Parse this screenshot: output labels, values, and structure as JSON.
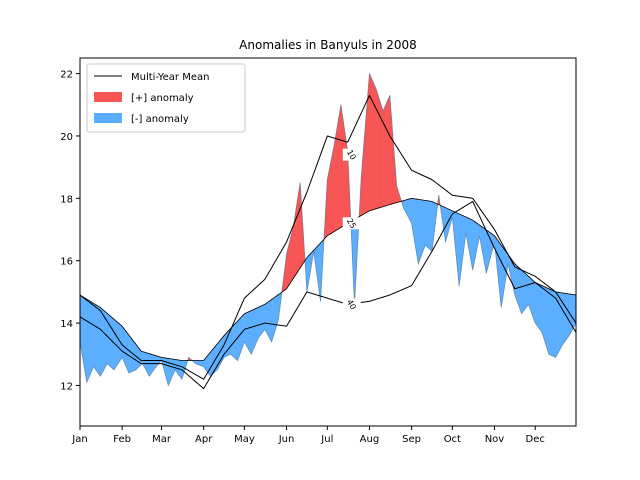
{
  "chart_data": {
    "type": "area",
    "title": "Anomalies in Banyuls in 2008",
    "xlabel": "",
    "ylabel": "",
    "xlim": [
      0,
      365
    ],
    "ylim": [
      10.7,
      22.5
    ],
    "x_ticks": [
      {
        "day": 0,
        "label": "Jan"
      },
      {
        "day": 31,
        "label": "Feb"
      },
      {
        "day": 60,
        "label": "Mar"
      },
      {
        "day": 91,
        "label": "Apr"
      },
      {
        "day": 121,
        "label": "May"
      },
      {
        "day": 152,
        "label": "Jun"
      },
      {
        "day": 182,
        "label": "Jul"
      },
      {
        "day": 213,
        "label": "Aug"
      },
      {
        "day": 244,
        "label": "Sep"
      },
      {
        "day": 274,
        "label": "Oct"
      },
      {
        "day": 305,
        "label": "Nov"
      },
      {
        "day": 335,
        "label": "Dec"
      }
    ],
    "y_ticks": [
      12,
      14,
      16,
      18,
      20,
      22
    ],
    "legend": {
      "placement": "top-left",
      "entries": [
        {
          "label": "Multi-Year Mean",
          "kind": "line",
          "color": "#000000"
        },
        {
          "label": "[+] anomaly",
          "kind": "patch",
          "color": "#f75454"
        },
        {
          "label": "[-] anomaly",
          "kind": "patch",
          "color": "#5aaeff"
        }
      ]
    },
    "colors": {
      "positive": "#f75454",
      "negative": "#5aaeff",
      "mean": "#000000"
    },
    "percentile_labels": [
      {
        "label": "10",
        "day": 200,
        "value": 19.4
      },
      {
        "label": "25",
        "day": 200,
        "value": 17.2
      },
      {
        "label": "40",
        "day": 200,
        "value": 14.6
      }
    ],
    "mean": {
      "day": [
        0,
        15,
        31,
        45,
        60,
        75,
        91,
        106,
        121,
        136,
        152,
        167,
        182,
        197,
        213,
        228,
        244,
        259,
        274,
        289,
        305,
        320,
        335,
        350,
        365
      ],
      "value": [
        14.9,
        14.5,
        13.9,
        13.1,
        12.9,
        12.8,
        12.8,
        13.6,
        14.3,
        14.6,
        15.1,
        16.1,
        16.8,
        17.2,
        17.6,
        17.8,
        18.0,
        17.9,
        17.6,
        17.3,
        16.8,
        15.9,
        15.3,
        15.0,
        14.9
      ]
    },
    "p10": {
      "day": [
        0,
        15,
        31,
        45,
        60,
        75,
        91,
        106,
        121,
        136,
        152,
        167,
        182,
        197,
        213,
        228,
        244,
        259,
        274,
        289,
        305,
        320,
        335,
        350,
        365
      ],
      "value": [
        14.9,
        14.4,
        13.3,
        12.8,
        12.8,
        12.6,
        12.2,
        13.3,
        14.8,
        15.4,
        16.6,
        18.2,
        20.0,
        19.8,
        21.3,
        20.0,
        18.9,
        18.6,
        18.1,
        18.0,
        17.0,
        15.8,
        15.5,
        15.0,
        14.0
      ]
    },
    "p40": {
      "day": [
        0,
        15,
        31,
        45,
        60,
        75,
        91,
        106,
        121,
        136,
        152,
        167,
        182,
        197,
        213,
        228,
        244,
        259,
        274,
        289,
        305,
        320,
        335,
        350,
        365
      ],
      "value": [
        14.2,
        13.8,
        13.1,
        12.7,
        12.7,
        12.5,
        11.9,
        13.0,
        13.8,
        14.0,
        13.9,
        15.0,
        14.8,
        14.6,
        14.7,
        14.9,
        15.2,
        16.3,
        17.5,
        17.9,
        16.4,
        15.1,
        15.3,
        14.8,
        13.7
      ]
    },
    "observed": {
      "day": [
        0,
        5,
        10,
        15,
        20,
        25,
        31,
        36,
        41,
        46,
        51,
        56,
        60,
        65,
        70,
        75,
        80,
        85,
        91,
        96,
        101,
        106,
        111,
        116,
        121,
        126,
        131,
        136,
        141,
        146,
        152,
        157,
        162,
        167,
        172,
        177,
        182,
        187,
        192,
        197,
        202,
        207,
        213,
        218,
        223,
        228,
        233,
        238,
        244,
        249,
        254,
        259,
        264,
        269,
        274,
        279,
        284,
        289,
        294,
        299,
        305,
        310,
        315,
        320,
        325,
        330,
        335,
        340,
        345,
        350,
        355,
        360,
        365
      ],
      "value": [
        13.4,
        12.1,
        12.6,
        12.3,
        12.7,
        12.5,
        12.9,
        12.4,
        12.5,
        12.7,
        12.3,
        12.6,
        12.8,
        12.0,
        12.5,
        12.2,
        12.9,
        12.7,
        12.6,
        12.3,
        12.5,
        12.9,
        13.0,
        12.8,
        13.4,
        13.0,
        13.5,
        13.8,
        13.4,
        14.1,
        16.2,
        17.1,
        18.5,
        15.0,
        16.3,
        14.7,
        18.6,
        19.7,
        21.0,
        19.5,
        14.6,
        18.7,
        22.0,
        21.5,
        20.8,
        21.3,
        18.4,
        17.7,
        17.2,
        15.9,
        16.5,
        16.3,
        18.1,
        16.6,
        17.4,
        15.2,
        16.9,
        15.7,
        16.8,
        15.6,
        16.6,
        14.5,
        15.9,
        14.9,
        14.3,
        14.6,
        14.0,
        13.7,
        13.0,
        12.9,
        13.3,
        13.6,
        14.0
      ]
    }
  }
}
